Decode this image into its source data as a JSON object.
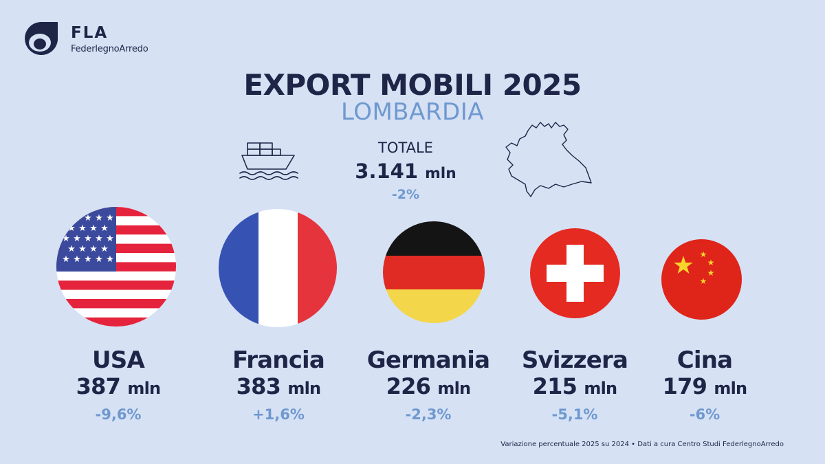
{
  "brand": {
    "name": "FLA",
    "full_name": "FederlegnoArredo"
  },
  "header": {
    "title": "EXPORT MOBILI 2025",
    "subtitle": "LOMBARDIA"
  },
  "total": {
    "label": "TOTALE",
    "value": "3.141",
    "unit": "mln",
    "change": "-2%"
  },
  "icons": {
    "ship": "cargo-ship-icon",
    "map": "lombardia-map-icon"
  },
  "countries": [
    {
      "name": "USA",
      "value": "387",
      "unit": "mln",
      "change": "-9,6%",
      "flag": "usa-flag"
    },
    {
      "name": "Francia",
      "value": "383",
      "unit": "mln",
      "change": "+1,6%",
      "flag": "france-flag"
    },
    {
      "name": "Germania",
      "value": "226",
      "unit": "mln",
      "change": "-2,3%",
      "flag": "germany-flag"
    },
    {
      "name": "Svizzera",
      "value": "215",
      "unit": "mln",
      "change": "-5,1%",
      "flag": "switzerland-flag"
    },
    {
      "name": "Cina",
      "value": "179",
      "unit": "mln",
      "change": "-6%",
      "flag": "china-flag"
    }
  ],
  "footnote": "Variazione percentuale 2025 su 2024 • Dati a cura Centro Studi FederlegnoArredo",
  "colors": {
    "background": "#d6e1f4",
    "navy": "#1f2547",
    "accent": "#6f98cf"
  }
}
